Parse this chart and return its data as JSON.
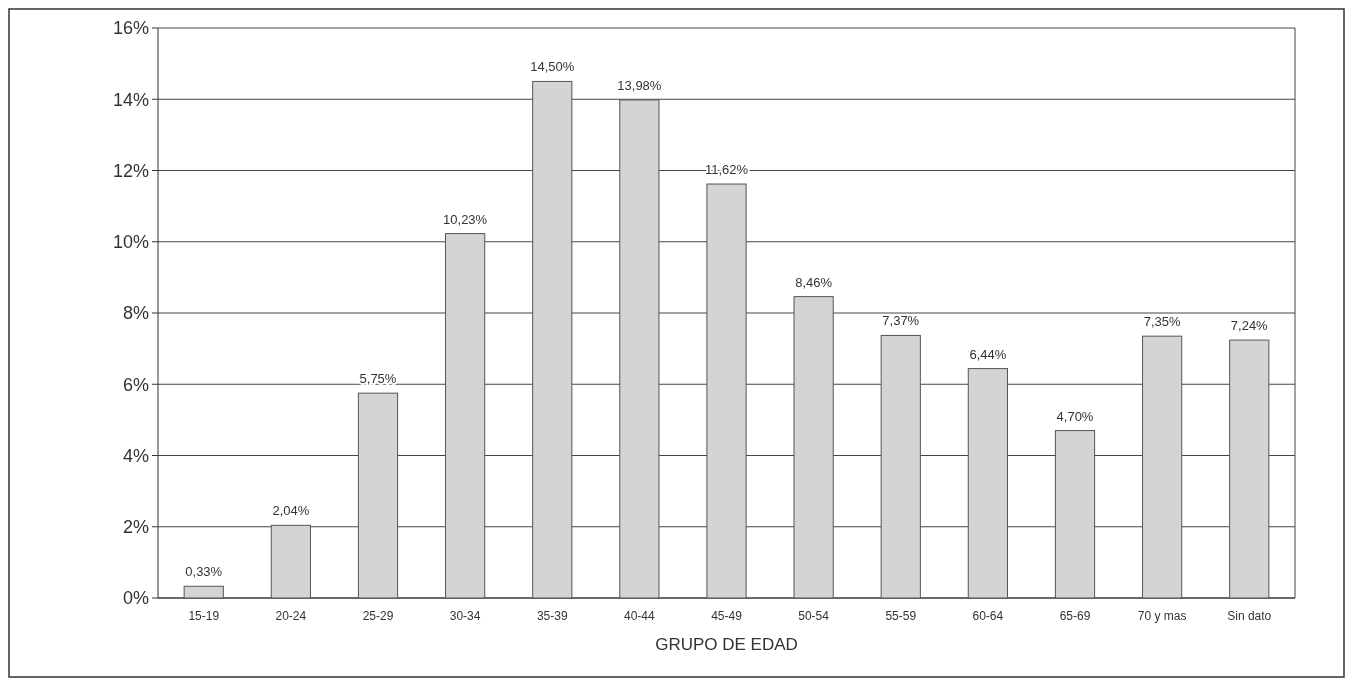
{
  "chart_data": {
    "type": "bar",
    "xlabel": "GRUPO DE EDAD",
    "categories": [
      "15-19",
      "20-24",
      "25-29",
      "30-34",
      "35-39",
      "40-44",
      "45-49",
      "50-54",
      "55-59",
      "60-64",
      "65-69",
      "70 y mas",
      "Sin dato"
    ],
    "values": [
      0.33,
      2.04,
      5.75,
      10.23,
      14.5,
      13.98,
      11.62,
      8.46,
      7.37,
      6.44,
      4.7,
      7.35,
      7.24
    ],
    "value_labels": [
      "0,33%",
      "2,04%",
      "5,75%",
      "10,23%",
      "14,50%",
      "13,98%",
      "11,62%",
      "8,46%",
      "7,37%",
      "6,44%",
      "4,70%",
      "7,35%",
      "7,24%"
    ],
    "color": "#d4d4d4",
    "ylim": [
      0,
      16
    ],
    "yticks": [
      {
        "value": 0,
        "label": "0%"
      },
      {
        "value": 2,
        "label": "2%"
      },
      {
        "value": 4,
        "label": "4%"
      },
      {
        "value": 6,
        "label": "6%"
      },
      {
        "value": 8,
        "label": "8%"
      },
      {
        "value": 10,
        "label": "10%"
      },
      {
        "value": 12,
        "label": "12%"
      },
      {
        "value": 14,
        "label": "14%"
      },
      {
        "value": 16,
        "label": "16%"
      }
    ],
    "grid": "y"
  }
}
